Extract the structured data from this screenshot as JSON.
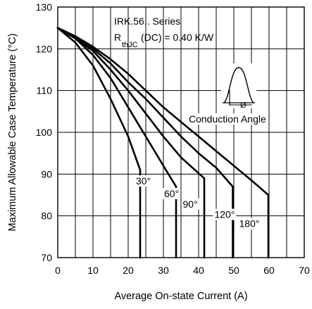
{
  "chart_data": {
    "type": "line",
    "title": "IRK.56.. Series",
    "subtitle": {
      "symbol": "R",
      "subscript": "thJC",
      "condition": "(DC) = 0.40 K/W"
    },
    "xlabel": "Average On-state Current (A)",
    "ylabel": "Maximum Allowable Case Temperature (°C)",
    "xlim": [
      0,
      70
    ],
    "ylim": [
      70,
      130
    ],
    "x_ticks": [
      0,
      10,
      20,
      30,
      40,
      50,
      60,
      70
    ],
    "y_ticks": [
      70,
      80,
      90,
      100,
      110,
      120,
      130
    ],
    "grid": true,
    "inset_label": "Conduction Angle",
    "inset_symbol": "Ø",
    "series": [
      {
        "name": "30°",
        "label_at": [
          22.2,
          87.5
        ],
        "points": [
          [
            0,
            125
          ],
          [
            5,
            121.5
          ],
          [
            10,
            116
          ],
          [
            15,
            108
          ],
          [
            20,
            99
          ],
          [
            23.4,
            91
          ],
          [
            23.4,
            70
          ]
        ]
      },
      {
        "name": "60°",
        "label_at": [
          30.2,
          84.5
        ],
        "points": [
          [
            0,
            125
          ],
          [
            5,
            122.5
          ],
          [
            10,
            118.5
          ],
          [
            15,
            113
          ],
          [
            20,
            106
          ],
          [
            25,
            99
          ],
          [
            30,
            92
          ],
          [
            33.6,
            87
          ],
          [
            33.6,
            70
          ]
        ]
      },
      {
        "name": "90°",
        "label_at": [
          35.5,
          82.0
        ],
        "points": [
          [
            0,
            125
          ],
          [
            5,
            122.5
          ],
          [
            10,
            119.5
          ],
          [
            15,
            115
          ],
          [
            20,
            110
          ],
          [
            25,
            104.5
          ],
          [
            30,
            99
          ],
          [
            35,
            94
          ],
          [
            41.6,
            89
          ],
          [
            41.6,
            70
          ]
        ]
      },
      {
        "name": "120°",
        "label_at": [
          44.5,
          79.5
        ],
        "points": [
          [
            0,
            125
          ],
          [
            5,
            123
          ],
          [
            10,
            120
          ],
          [
            15,
            116.5
          ],
          [
            20,
            112
          ],
          [
            25,
            108
          ],
          [
            30,
            103.5
          ],
          [
            35,
            99
          ],
          [
            40,
            95
          ],
          [
            45,
            91.5
          ],
          [
            49.7,
            87
          ],
          [
            49.7,
            70
          ]
        ]
      },
      {
        "name": "180°",
        "label_at": [
          51.5,
          77.3
        ],
        "points": [
          [
            0,
            125
          ],
          [
            5,
            123
          ],
          [
            10,
            120.5
          ],
          [
            15,
            117.5
          ],
          [
            20,
            114
          ],
          [
            25,
            110
          ],
          [
            30,
            106
          ],
          [
            35,
            102.5
          ],
          [
            40,
            99
          ],
          [
            45,
            95.5
          ],
          [
            50,
            92
          ],
          [
            55,
            88.5
          ],
          [
            59.8,
            85
          ],
          [
            59.8,
            70
          ]
        ]
      }
    ]
  }
}
